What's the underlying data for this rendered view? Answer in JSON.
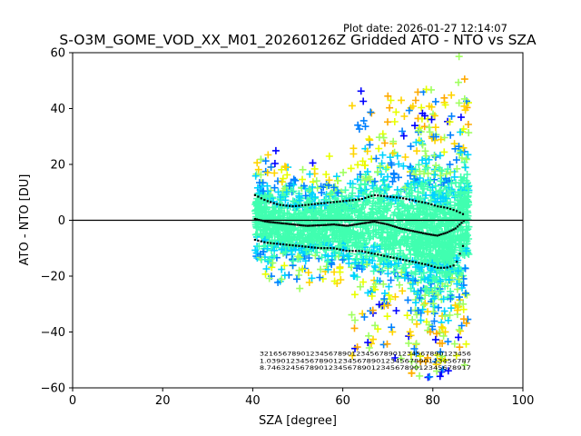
{
  "chart_data": {
    "type": "scatter",
    "plot_date": "Plot date: 2026-01-27 12:14:07",
    "title": "S-O3M_GOME_VOD_XX_M01_20260126Z Gridded ATO - NTO vs SZA",
    "xlabel": "SZA [degree]",
    "ylabel": "ATO - NTO [DU]",
    "xlim": [
      0,
      100
    ],
    "ylim": [
      -60,
      60
    ],
    "xticks": [
      0,
      20,
      40,
      60,
      80,
      100
    ],
    "yticks": [
      -60,
      -40,
      -20,
      0,
      20,
      40,
      60
    ],
    "xtick_labels": [
      "0",
      "20",
      "40",
      "60",
      "80",
      "100"
    ],
    "ytick_labels": [
      "−60",
      "−40",
      "−20",
      "0",
      "20",
      "40",
      "60"
    ],
    "zero_line": 0,
    "scatter_colors": [
      "#0000ff",
      "#0080ff",
      "#00d4ff",
      "#40ffb0",
      "#a0ff60",
      "#e8ff00",
      "#ffd400",
      "#ffaa00",
      "#ff7000"
    ],
    "mean_line": {
      "x": [
        40.5,
        43,
        46,
        49,
        52,
        55,
        58,
        61,
        64,
        67,
        70,
        73,
        76,
        79,
        81,
        83,
        85,
        87
      ],
      "y": [
        0.5,
        -0.5,
        -1,
        -1.5,
        -2,
        -1.8,
        -1.5,
        -2,
        -1.2,
        -0.5,
        -1.5,
        -3,
        -4,
        -5,
        -5.5,
        -4.5,
        -3,
        0
      ]
    },
    "upper_sigma": {
      "x": [
        40.5,
        43,
        46,
        49,
        52,
        55,
        58,
        61,
        64,
        67,
        70,
        73,
        76,
        79,
        81,
        83,
        85,
        87
      ],
      "y": [
        9,
        7,
        5.5,
        5,
        5.5,
        6,
        6.5,
        7,
        7.5,
        9,
        8.5,
        8,
        7,
        6,
        5,
        4.5,
        3.5,
        2
      ]
    },
    "lower_sigma": {
      "x": [
        40.5,
        43,
        46,
        49,
        52,
        55,
        58,
        61,
        64,
        67,
        70,
        73,
        76,
        79,
        81,
        83,
        85,
        87
      ],
      "y": [
        -7,
        -8,
        -8.5,
        -9,
        -9.5,
        -10,
        -10,
        -11,
        -11,
        -12,
        -13,
        -14,
        -15,
        -16,
        -17,
        -17,
        -16,
        -8
      ]
    },
    "count_annotations": {
      "rows": [
        "3216567890123456789012345678901234567890123456",
        "1.0390123456789012345678901234567890123456787",
        "8.7463245678901234567890123456789012345678917"
      ],
      "y": [
        -48.5,
        -51,
        -53.5
      ]
    }
  }
}
